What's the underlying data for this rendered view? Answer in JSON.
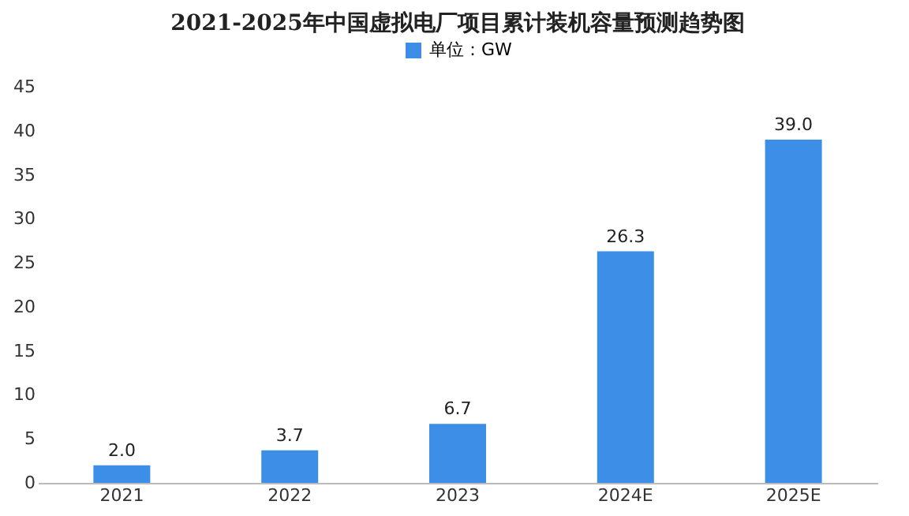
{
  "chart_data": {
    "type": "bar",
    "title": "2021-2025年中国虚拟电厂项目累计装机容量预测趋势图",
    "categories": [
      "2021",
      "2022",
      "2023",
      "2024E",
      "2025E"
    ],
    "series": [
      {
        "name": "单位：GW",
        "color": "#3d8ee6",
        "values": [
          2.0,
          3.7,
          6.7,
          26.3,
          39.0
        ]
      }
    ],
    "value_labels": [
      "2.0",
      "3.7",
      "6.7",
      "26.3",
      "39.0"
    ],
    "ylim": [
      0,
      45
    ],
    "yticks": [
      0,
      5,
      10,
      15,
      20,
      25,
      30,
      35,
      40,
      45
    ],
    "grid": false,
    "legend": "top"
  }
}
